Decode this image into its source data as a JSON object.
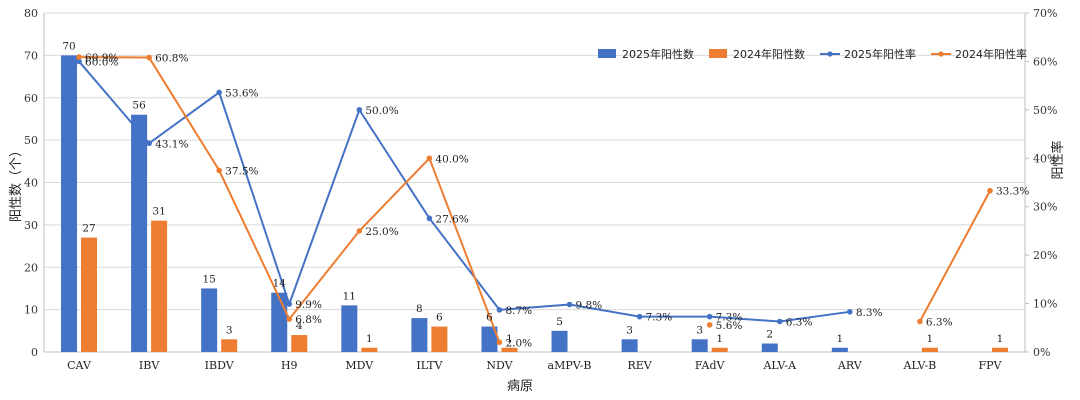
{
  "chart_data": {
    "type": "bar",
    "xlabel": "病原",
    "ylabel": "阳性数（个）",
    "y2label": "阳性率",
    "ylim": [
      0,
      80
    ],
    "y2lim": [
      0,
      70
    ],
    "yticks": [
      0,
      10,
      20,
      30,
      40,
      50,
      60,
      70,
      80
    ],
    "y2ticks": [
      "0%",
      "10%",
      "20%",
      "30%",
      "40%",
      "50%",
      "60%",
      "70%"
    ],
    "grid": "horizontal",
    "legend_position": "top-right",
    "categories": [
      "CAV",
      "IBV",
      "IBDV",
      "H9",
      "MDV",
      "ILTV",
      "NDV",
      "aMPV-B",
      "REV",
      "FAdV",
      "ALV-A",
      "ARV",
      "ALV-B",
      "FPV"
    ],
    "colors": {
      "bar2025": "#4472C4",
      "bar2024": "#ED7D31",
      "line2025": "#4472C4",
      "line2024": "#ED7D31",
      "grid": "#d9d9d9",
      "axis": "#bfbfbf"
    },
    "series": [
      {
        "name": "2025年阳性数",
        "kind": "bar",
        "axis": "left",
        "values": [
          70,
          56,
          15,
          14,
          11,
          8,
          6,
          5,
          3,
          3,
          2,
          1,
          null,
          null
        ],
        "labels": [
          "70",
          "56",
          "15",
          "14",
          "11",
          "8",
          "6",
          "5",
          "3",
          "3",
          "2",
          "1",
          "",
          ""
        ]
      },
      {
        "name": "2024年阳性数",
        "kind": "bar",
        "axis": "left",
        "values": [
          27,
          31,
          3,
          4,
          1,
          6,
          1,
          null,
          null,
          1,
          null,
          null,
          1,
          1
        ],
        "labels": [
          "27",
          "31",
          "3",
          "4",
          "1",
          "6",
          "1",
          "",
          "",
          "1",
          "",
          "",
          "1",
          "1"
        ]
      },
      {
        "name": "2025年阳性率",
        "kind": "line",
        "axis": "right",
        "values": [
          60.0,
          43.1,
          53.6,
          9.9,
          50.0,
          27.6,
          8.7,
          9.8,
          7.3,
          7.3,
          6.3,
          8.3,
          null,
          null
        ],
        "labels": [
          "60.0%",
          "43.1%",
          "53.6%",
          "9.9%",
          "50.0%",
          "27.6%",
          "8.7%",
          "9.8%",
          "7.3%",
          "7.3%",
          "6.3%",
          "8.3%",
          "",
          ""
        ]
      },
      {
        "name": "2024年阳性率",
        "kind": "line",
        "axis": "right",
        "values": [
          60.9,
          60.8,
          37.5,
          6.8,
          25.0,
          40.0,
          2.0,
          null,
          null,
          5.6,
          null,
          null,
          6.3,
          33.3
        ],
        "labels": [
          "60.9%",
          "60.8%",
          "37.5%",
          "6.8%",
          "25.0%",
          "40.0%",
          "2.0%",
          "",
          "",
          "5.6%",
          "",
          "",
          "6.3%",
          "33.3%"
        ]
      }
    ]
  }
}
